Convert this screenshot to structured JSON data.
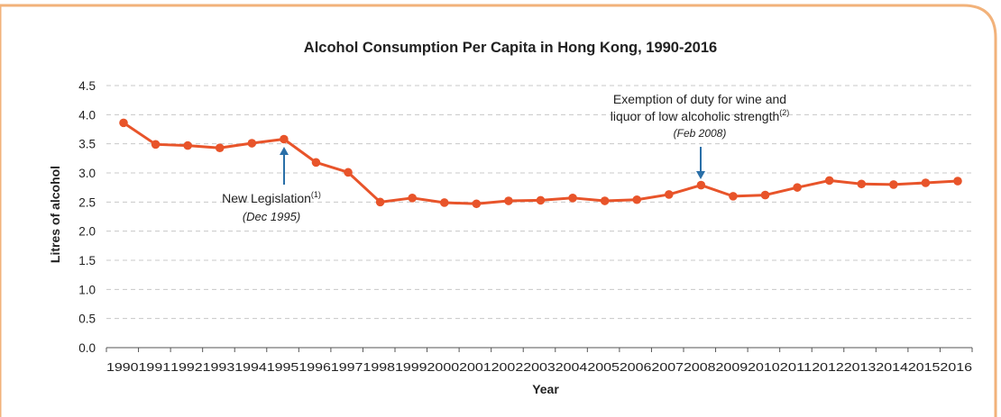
{
  "chart_data": {
    "type": "line",
    "title": "Alcohol Consumption Per Capita in Hong Kong, 1990-2016",
    "xlabel": "Year",
    "ylabel": "Litres of alcohol",
    "ylim": [
      0,
      4.5
    ],
    "yticks": [
      "0.0",
      "0.5",
      "1.0",
      "1.5",
      "2.0",
      "2.5",
      "3.0",
      "3.5",
      "4.0",
      "4.5"
    ],
    "grid": "horizontal dashed",
    "legend": "none",
    "categories": [
      "1990",
      "1991",
      "1992",
      "1993",
      "1994",
      "1995",
      "1996",
      "1997",
      "1998",
      "1999",
      "2000",
      "2001",
      "2002",
      "2003",
      "2004",
      "2005",
      "2006",
      "2007",
      "2008",
      "2009",
      "2010",
      "2011",
      "2012",
      "2013",
      "2014",
      "2015",
      "2016"
    ],
    "series": [
      {
        "values": [
          3.86,
          3.49,
          3.47,
          3.43,
          3.51,
          3.58,
          3.18,
          3.01,
          2.5,
          2.57,
          2.49,
          2.47,
          2.52,
          2.53,
          2.57,
          2.52,
          2.54,
          2.63,
          2.79,
          2.6,
          2.62,
          2.75,
          2.87,
          2.81,
          2.8,
          2.83,
          2.86
        ],
        "color": "#e8542a"
      }
    ],
    "annotations": [
      {
        "line1": "New Legislation",
        "superscript": "(1)",
        "line2": "(Dec 1995)",
        "arrow_at_year": "1995"
      },
      {
        "line1": "Exemption of duty for wine and",
        "line1b": "liquor of low alcoholic strength",
        "superscript": "(2)",
        "line2": "(Feb 2008)",
        "arrow_at_year": "2008"
      }
    ]
  },
  "colors": {
    "frame": "#f2b27a",
    "line": "#e8542a",
    "arrow": "#2a6fa8",
    "grid": "#c8c8c8",
    "text": "#222222"
  }
}
